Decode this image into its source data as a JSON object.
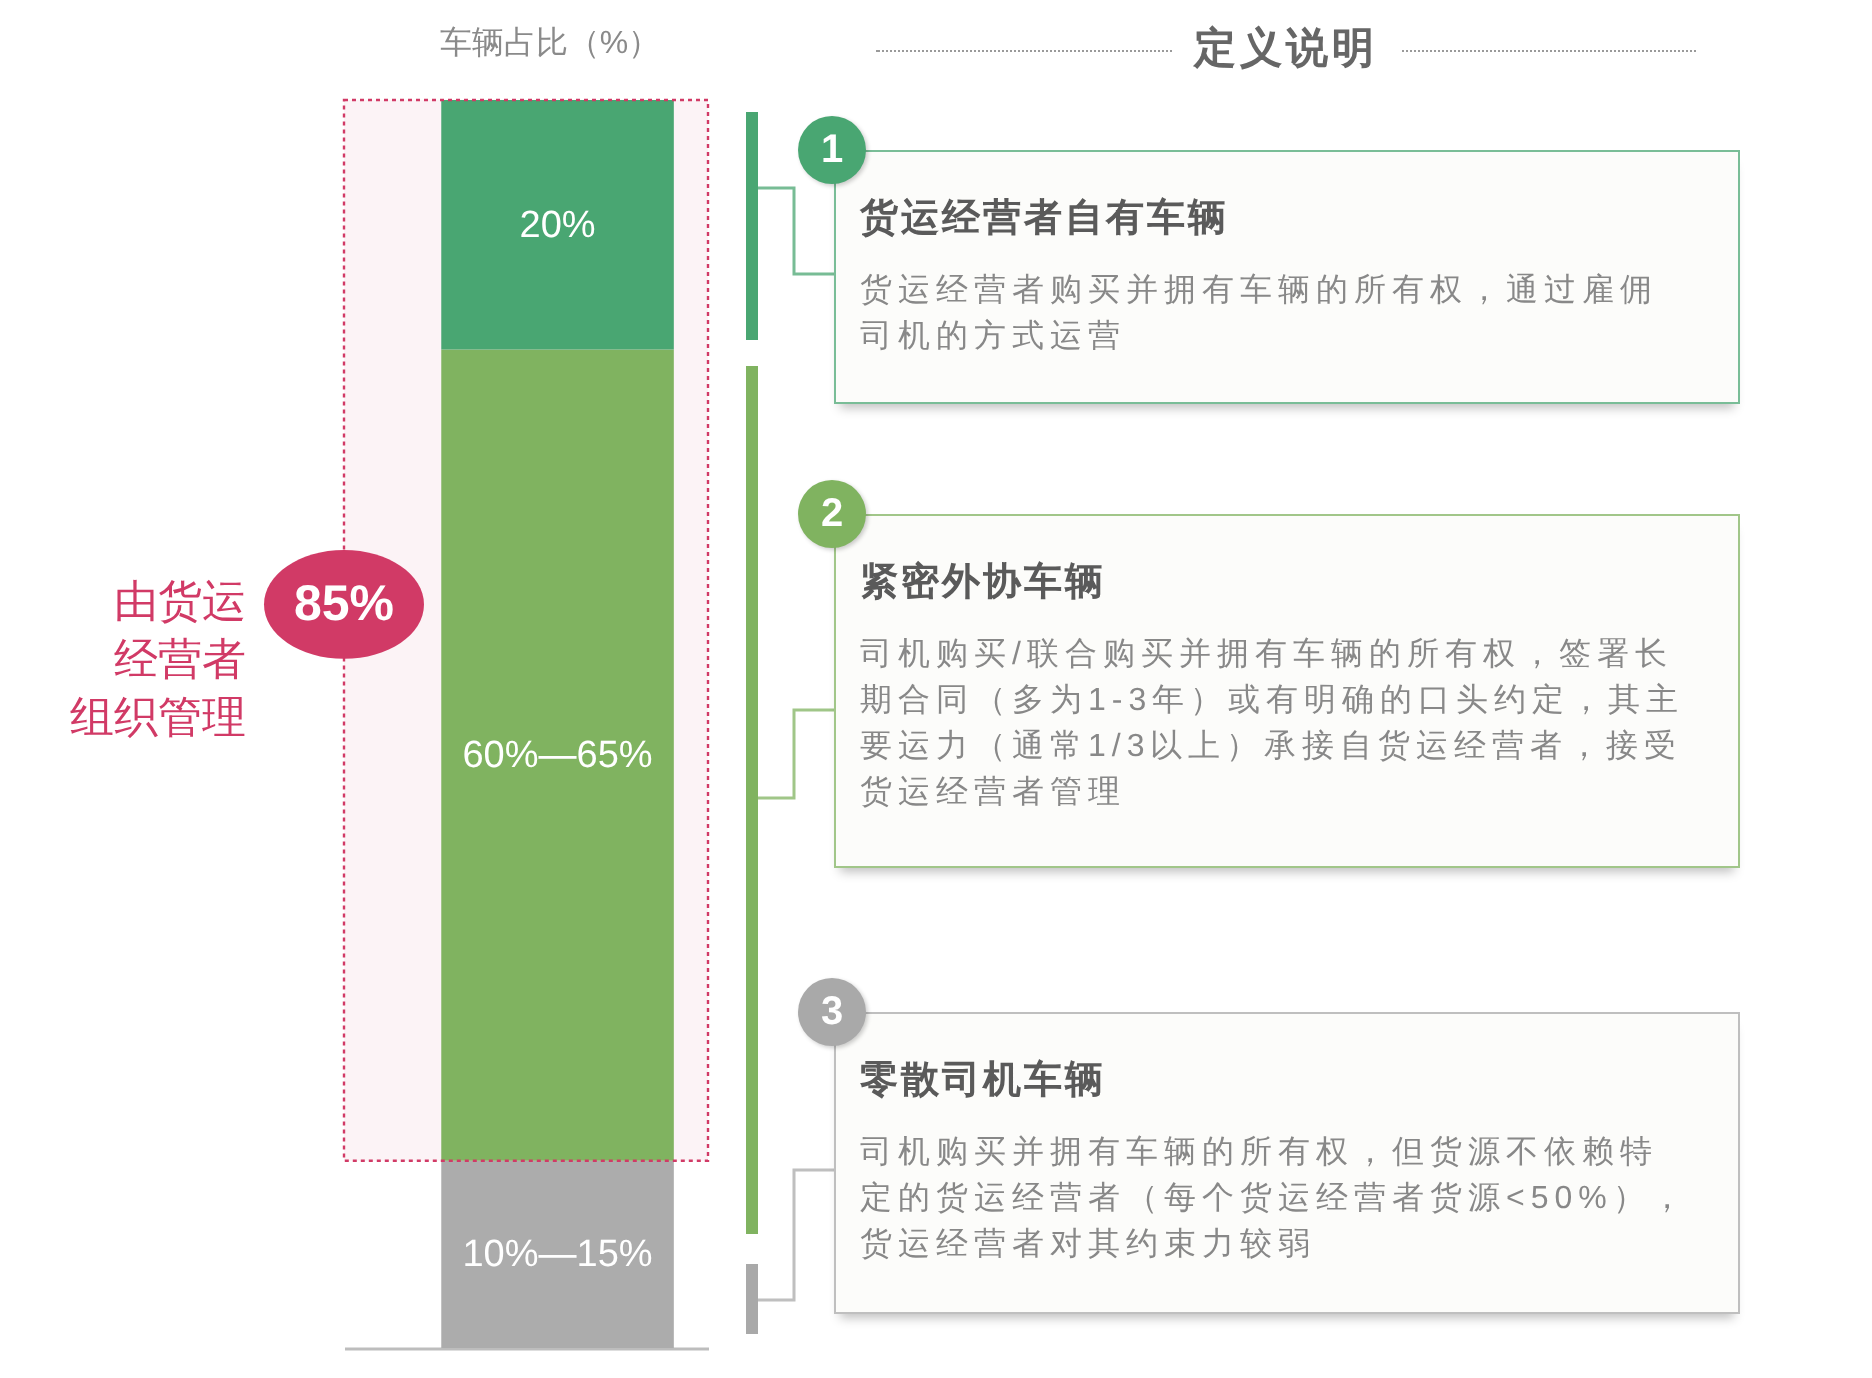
{
  "chart_data": [
    {
      "type": "bar",
      "title": "车辆占比（%）",
      "categories": [
        null
      ],
      "stacked": true,
      "series": [
        {
          "color": "#acacac",
          "values": [
            15
          ],
          "value_labels": [
            "10%—15%"
          ]
        },
        {
          "color": "#80b360",
          "values": [
            65
          ],
          "value_labels": [
            "60%—65%"
          ]
        },
        {
          "color": "#49a672",
          "values": [
            20
          ],
          "value_labels": [
            "20%"
          ]
        }
      ],
      "bands": [
        {
          "axis": "y",
          "from": 15,
          "to": 100,
          "label": "由货运经营者组织管理",
          "color": "#d13a66"
        }
      ],
      "annotations": [
        "85%"
      ]
    },
    {
      "type": "other",
      "title": "定义说明",
      "colors": [
        "#49a672",
        "#80b360",
        "#a9a9a9"
      ],
      "annotations": [
        "1",
        "货运经营者自有车辆",
        "货运经营者购买并拥有车辆的所有权，通过雇佣司机的方式运营",
        "2",
        "紧密外协车辆",
        "司机购买/联合购买并拥有车辆的所有权，签署长期合同（多为1-3年）或有明确的口头约定，其主要运力（通常1/3以上）承接自货运经营者，接受货运经营者管理",
        "3",
        "零散司机车辆",
        "司机购买并拥有车辆的所有权，但货源不依赖特定的货运经营者（每个货运经营者货源<50%），货运经营者对其约束力较弱"
      ]
    }
  ]
}
